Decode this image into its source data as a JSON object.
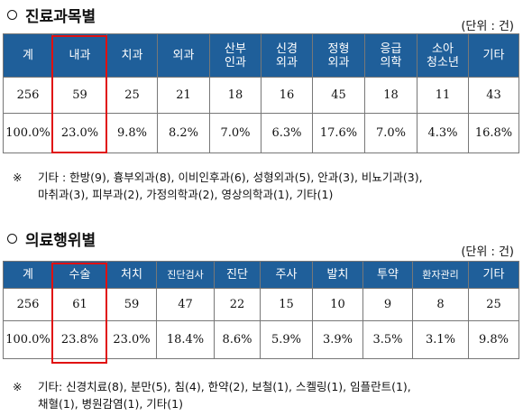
{
  "section1": {
    "title": "진료과목별",
    "unit": "(단위 : 건)",
    "headers": [
      "계",
      "내과",
      "치과",
      "외과",
      "산부\n인과",
      "신경\n외과",
      "정형\n외과",
      "응급\n의학",
      "소아\n청소년",
      "기타"
    ],
    "counts": [
      "256",
      "59",
      "25",
      "21",
      "18",
      "16",
      "45",
      "18",
      "11",
      "43"
    ],
    "percents": [
      "100.0%",
      "23.0%",
      "9.8%",
      "8.2%",
      "7.0%",
      "6.3%",
      "17.6%",
      "7.0%",
      "4.3%",
      "16.8%"
    ],
    "note_mark": "※",
    "note_line1": "기타 : 한방(9), 흉부외과(8), 이비인후과(6), 성형외과(5), 안과(3), 비뇨기과(3),",
    "note_line2": "마취과(3), 피부과(2), 가정의학과(2), 영상의학과(1), 기타(1)"
  },
  "section2": {
    "title": "의료행위별",
    "unit": "(단위 : 건)",
    "headers": [
      "계",
      "수술",
      "처치",
      "진단검사",
      "진단",
      "주사",
      "발치",
      "투약",
      "환자관리",
      "기타"
    ],
    "counts": [
      "256",
      "61",
      "59",
      "47",
      "22",
      "15",
      "10",
      "9",
      "8",
      "25"
    ],
    "percents": [
      "100.0%",
      "23.8%",
      "23.0%",
      "18.4%",
      "8.6%",
      "5.9%",
      "3.9%",
      "3.5%",
      "3.1%",
      "9.8%"
    ],
    "note_mark": "※",
    "note_line1": "기타: 신경치료(8), 분만(5), 침(4), 한약(2), 보철(1), 스켈링(1), 임플란트(1),",
    "note_line2": "채혈(1), 병원감염(1), 기타(1)"
  },
  "colors": {
    "header_bg": "#1f5f9a",
    "highlight": "#e01010"
  }
}
